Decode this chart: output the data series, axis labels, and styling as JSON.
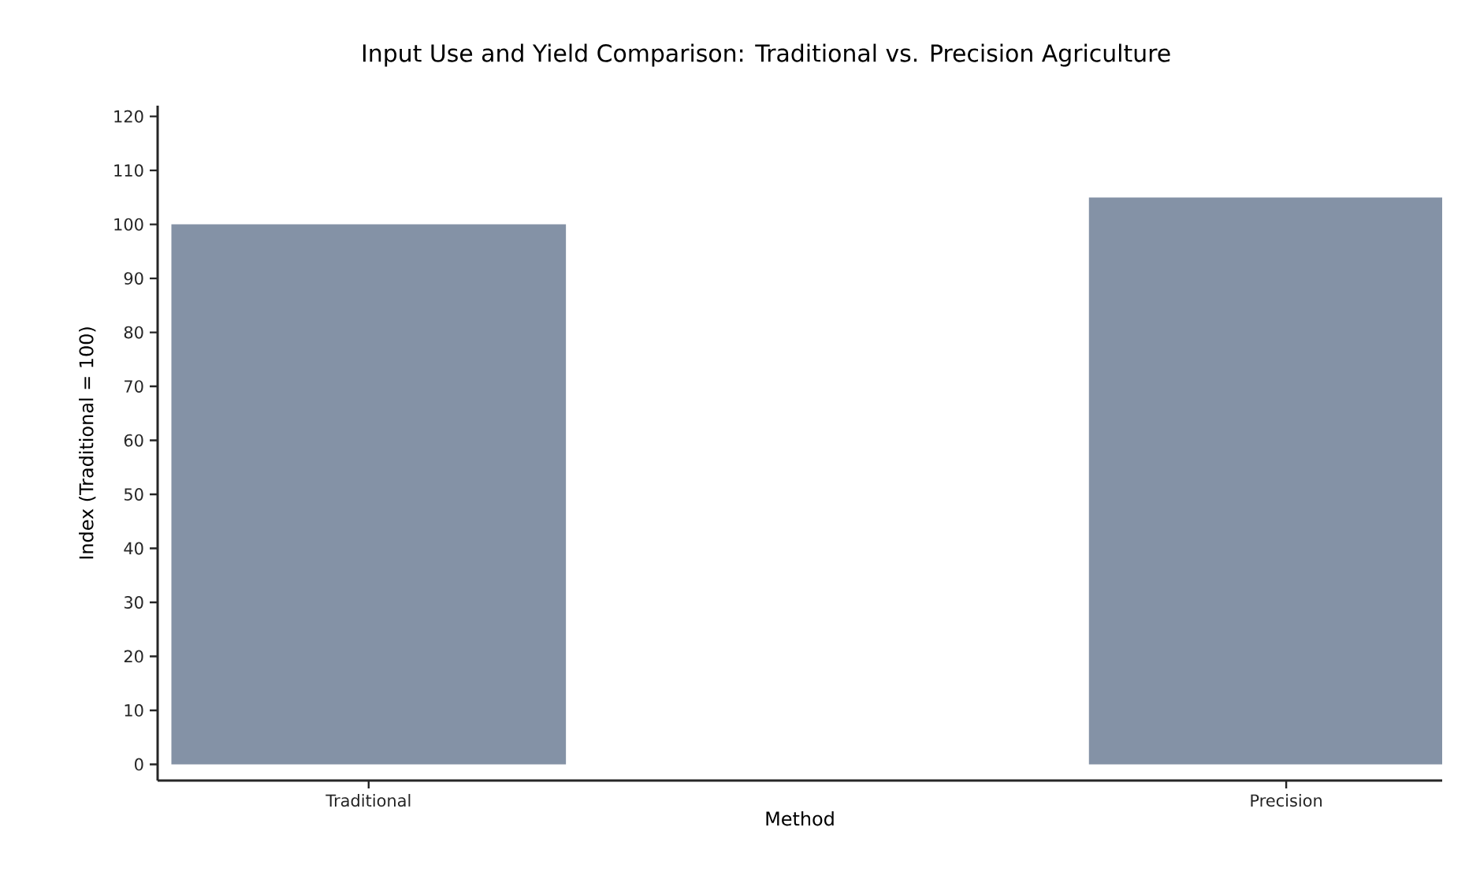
{
  "chart_data": {
    "type": "bar",
    "title": "Input Use and Yield Comparison: Traditional vs. Precision Agriculture",
    "xlabel": "Method",
    "ylabel": "Index (Traditional = 100)",
    "categories": [
      "Traditional",
      "Precision"
    ],
    "values": [
      100,
      105
    ],
    "color": "#8492a6",
    "ylim": [
      -3,
      122
    ],
    "yticks": [
      0,
      10,
      20,
      30,
      40,
      50,
      60,
      70,
      80,
      90,
      100,
      110,
      120
    ],
    "grid": false
  }
}
